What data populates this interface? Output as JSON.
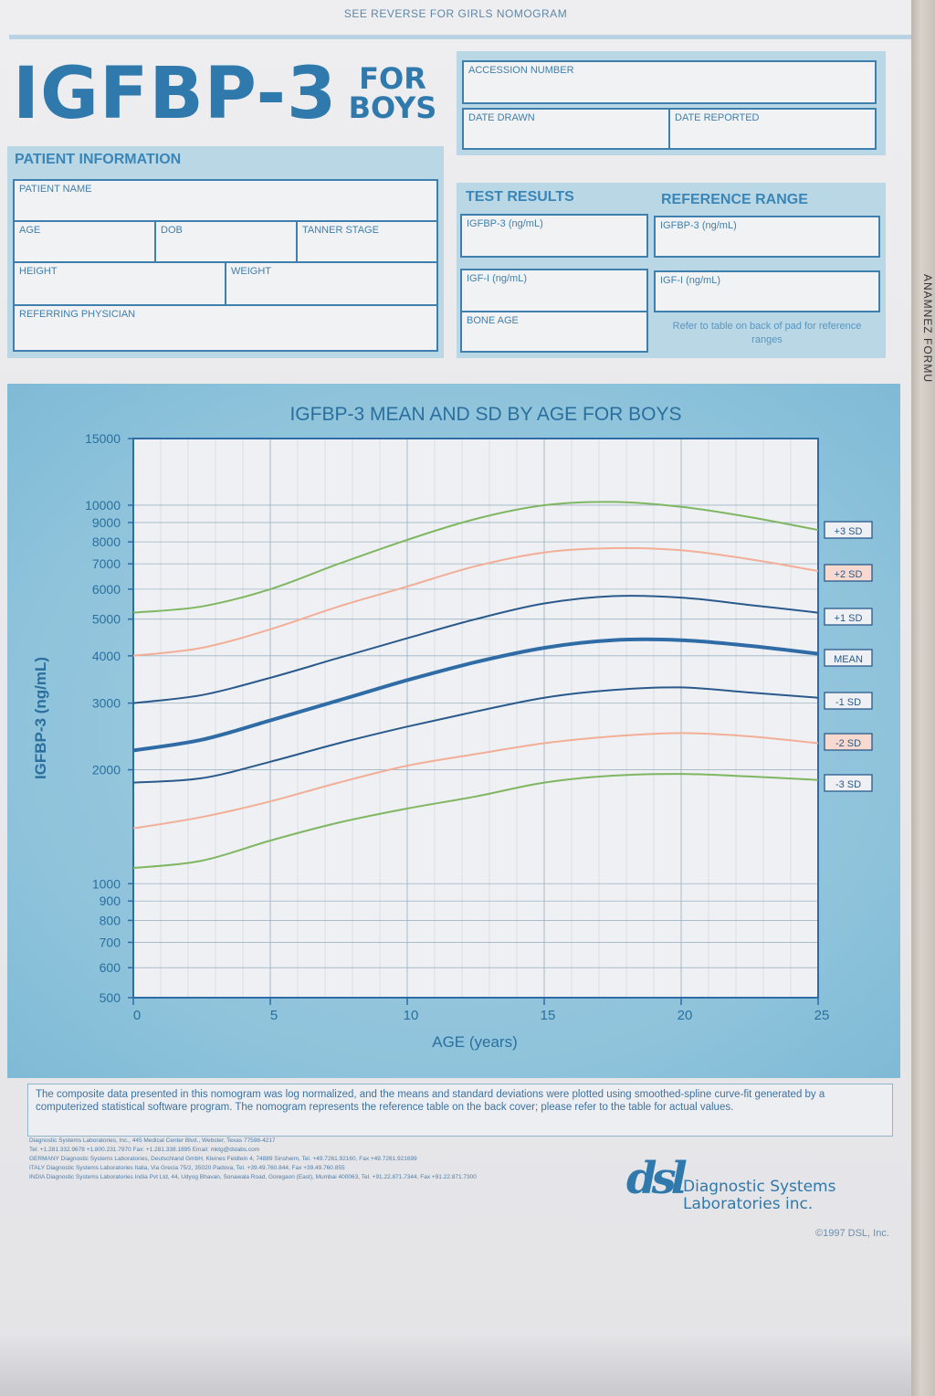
{
  "top_note": "SEE REVERSE FOR GIRLS NOMOGRAM",
  "title": "IGFBP-3",
  "subtitle_lines": [
    "FOR",
    "BOYS"
  ],
  "edge_text": "ANAMNEZ FORMU",
  "header_fields": {
    "accession": "ACCESSION NUMBER",
    "date_drawn": "DATE DRAWN",
    "date_reported": "DATE REPORTED"
  },
  "patient_info": {
    "heading": "PATIENT INFORMATION",
    "patient_name": "PATIENT NAME",
    "age": "AGE",
    "dob": "DOB",
    "tanner_stage": "TANNER STAGE",
    "height": "HEIGHT",
    "weight": "WEIGHT",
    "referring_physician": "REFERRING PHYSICIAN"
  },
  "test_results": {
    "heading": "TEST RESULTS",
    "igfbp3": "IGFBP-3 (ng/mL)",
    "igf1": "IGF-I (ng/mL)",
    "bone_age": "BONE AGE"
  },
  "reference_range": {
    "heading": "REFERENCE RANGE",
    "igfbp3": "IGFBP-3 (ng/mL)",
    "igf1": "IGF-I (ng/mL)",
    "note": "Refer to table on back of pad for reference ranges"
  },
  "chart_data": {
    "type": "line",
    "title": "IGFBP-3 MEAN AND SD BY AGE FOR BOYS",
    "xlabel": "AGE (years)",
    "ylabel": "IGFBP-3 (ng/mL)",
    "xlim": [
      0,
      25
    ],
    "ylim": [
      500,
      15000
    ],
    "yscale": "log",
    "grid": true,
    "x_ticks": [
      0,
      5,
      10,
      15,
      20,
      25
    ],
    "y_ticks": [
      500,
      600,
      700,
      800,
      900,
      1000,
      2000,
      3000,
      4000,
      5000,
      6000,
      7000,
      8000,
      9000,
      10000,
      15000
    ],
    "y_tick_labels": [
      "500",
      "600",
      "700",
      "800",
      "900",
      "1000",
      "2000",
      "3000",
      "4000",
      "5000",
      "6000",
      "7000",
      "8000",
      "9000",
      "10000",
      "15000"
    ],
    "x": [
      0,
      2.5,
      5,
      7.5,
      10,
      12.5,
      15,
      17.5,
      20,
      22.5,
      25
    ],
    "series": [
      {
        "name": "+3 SD",
        "color": "#7fb661",
        "values": [
          5200,
          5400,
          6000,
          7000,
          8100,
          9200,
          10000,
          10200,
          9900,
          9300,
          8600
        ]
      },
      {
        "name": "+2 SD",
        "color": "#f2ae96",
        "values": [
          4000,
          4200,
          4700,
          5400,
          6100,
          6900,
          7500,
          7700,
          7600,
          7200,
          6700
        ]
      },
      {
        "name": "+1 SD",
        "color": "#2a5a8c",
        "values": [
          3000,
          3150,
          3500,
          3950,
          4450,
          5000,
          5500,
          5750,
          5700,
          5450,
          5200
        ]
      },
      {
        "name": "MEAN",
        "color": "#2f6ca6",
        "values": [
          2250,
          2400,
          2700,
          3050,
          3450,
          3850,
          4200,
          4400,
          4400,
          4250,
          4050
        ]
      },
      {
        "name": "-1 SD",
        "color": "#2a5a8c",
        "values": [
          1850,
          1900,
          2100,
          2350,
          2600,
          2850,
          3100,
          3250,
          3300,
          3200,
          3100
        ]
      },
      {
        "name": "-2 SD",
        "color": "#f2ae96",
        "values": [
          1400,
          1500,
          1650,
          1850,
          2050,
          2200,
          2350,
          2450,
          2500,
          2450,
          2350
        ]
      },
      {
        "name": "-3 SD",
        "color": "#7fb661",
        "values": [
          1100,
          1150,
          1300,
          1450,
          1580,
          1700,
          1850,
          1930,
          1950,
          1920,
          1880
        ]
      }
    ]
  },
  "footnote": "The composite data presented in this nomogram was log normalized, and the means and standard deviations were plotted using smoothed-spline curve-fit generated by a computerized statistical software program. The nomogram represents the reference table on the back cover; please refer to the table for actual values.",
  "address_lines": [
    "Diagnostic Systems Laboratories, Inc., 445 Medical Center Blvd., Webster, Texas 77598-4217",
    "Tel: +1.281.332.9678 +1.800.231.7970 Fax: +1.281.338.1895 Email: mktg@dslabs.com",
    "GERMANY Diagnostic Systems Laboratories, Deutschland GmbH, Kleines Feldlein 4, 74889 Sinsheim, Tel. +49.7261.92160, Fax +49.7261.921699",
    "ITALY Diagnostic Systems Laboratories Italia, Via Grecia 75/2, 35020 Padova, Tel. +39.49.760.844, Fax +39.49.760.855",
    "INDIA Diagnostic Systems Laboratories India Pvt Ltd, 44, Udyog Bhavan, Sonawala Road, Goregaon (East), Mumbai 400063, Tel. +91.22.871.7344, Fax +91.22.871.7300"
  ],
  "logo": {
    "mark": "dsl",
    "name_line1": "Diagnostic Systems",
    "name_line2": "Laboratories inc."
  },
  "copyright": "©1997 DSL, Inc."
}
